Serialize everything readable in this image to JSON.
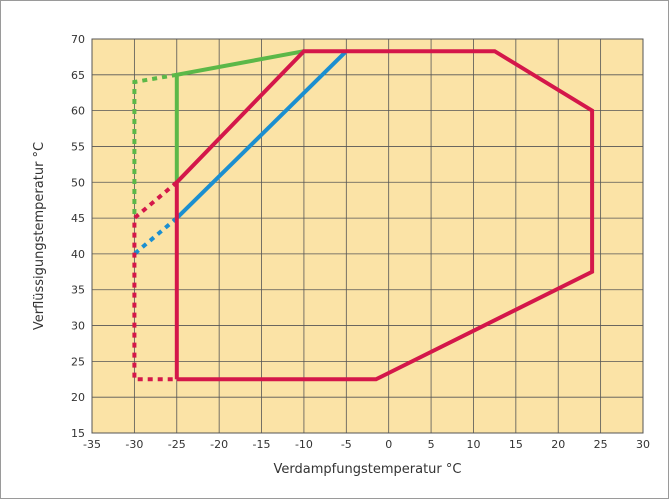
{
  "chart_data": {
    "type": "line",
    "title": "",
    "xlabel": "Verdampfungstemperatur °C",
    "ylabel": "Verflüssigungstemperatur °C",
    "xlim": [
      -35,
      30
    ],
    "ylim": [
      15,
      70
    ],
    "xticks": [
      -35,
      -30,
      -25,
      -20,
      -15,
      -10,
      -5,
      0,
      5,
      10,
      15,
      20,
      25,
      30
    ],
    "yticks": [
      15,
      20,
      25,
      30,
      35,
      40,
      45,
      50,
      55,
      60,
      65,
      70
    ],
    "grid": true,
    "background_color": "#fbe3a6",
    "grid_color": "#555555",
    "series": [
      {
        "color": "#5cb848",
        "style": "solid",
        "points": [
          [
            -25,
            50
          ],
          [
            -25,
            65
          ],
          [
            -10,
            68.3
          ]
        ]
      },
      {
        "color": "#5cb848",
        "style": "dashed",
        "points": [
          [
            -25,
            65
          ],
          [
            -30,
            64
          ],
          [
            -30,
            45
          ]
        ]
      },
      {
        "color": "#1b8fd0",
        "style": "solid",
        "points": [
          [
            -25,
            45
          ],
          [
            -5,
            68.3
          ]
        ]
      },
      {
        "color": "#1b8fd0",
        "style": "dashed",
        "points": [
          [
            -25,
            45
          ],
          [
            -30,
            40
          ]
        ]
      },
      {
        "color": "#d4174a",
        "style": "solid",
        "points": [
          [
            -25,
            22.5
          ],
          [
            -25,
            50
          ],
          [
            -10,
            68.3
          ],
          [
            12.5,
            68.3
          ],
          [
            24,
            60
          ],
          [
            24,
            37.5
          ],
          [
            -1.5,
            22.5
          ],
          [
            -25,
            22.5
          ]
        ]
      },
      {
        "color": "#d4174a",
        "style": "dashed",
        "points": [
          [
            -25,
            50
          ],
          [
            -30,
            45
          ],
          [
            -30,
            22.5
          ],
          [
            -25,
            22.5
          ]
        ]
      }
    ]
  }
}
